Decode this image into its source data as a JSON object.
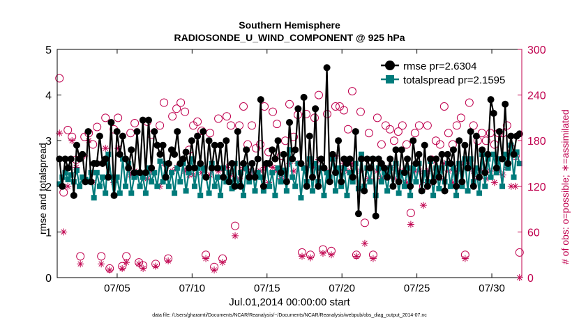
{
  "chart_data": {
    "type": "line",
    "title": [
      "Southern Hemisphere",
      "RADIOSONDE_U_WIND_COMPONENT @ 925 hPa"
    ],
    "xlabel": "Jul.01,2014 00:00:00 start",
    "ylabel": "rmse and totalspread",
    "ylabel_right": "# of obs: o=possible; ∗=assimilated",
    "footnote": "data file: /Users/gharamti/Documents/NCAR/Reanalysis/~/Documents/NCAR/Reanalysis/webpub/obs_diag_output_2014-07.nc",
    "xlim": [
      1,
      32
    ],
    "ylim": [
      0,
      5
    ],
    "ylim_right": [
      0,
      300
    ],
    "x_ticks": [
      5,
      10,
      15,
      20,
      25,
      30
    ],
    "x_tick_labels": [
      "07/05",
      "07/10",
      "07/15",
      "07/20",
      "07/25",
      "07/30"
    ],
    "y_ticks": [
      0,
      1,
      2,
      3,
      4,
      5
    ],
    "y_ticks_right": [
      0,
      60,
      120,
      180,
      240,
      300
    ],
    "legend_position": "top-right",
    "colors": {
      "rmse": "#000000",
      "totalspread": "#007B7B",
      "obs": "#C0004E"
    },
    "series": [
      {
        "name": "rmse pr=2.6304",
        "marker": "circle",
        "values": [
          2.6,
          2.0,
          2.6,
          2.4,
          2.6,
          1.8,
          2.9,
          2.6,
          2.7,
          2.1,
          3.2,
          2.1,
          2.5,
          2.5,
          3.1,
          2.5,
          2.6,
          2.2,
          3.4,
          1.8,
          3.2,
          2.7,
          3.1,
          2.6,
          2.4,
          2.8,
          2.3,
          3.2,
          2.3,
          3.45,
          2.3,
          3.45,
          2.4,
          3.2,
          2.9,
          2.7,
          2.9,
          2.2,
          2.5,
          2.8,
          2.7,
          3.2,
          2.5,
          2.6,
          2.75,
          2.4,
          3.0,
          2.4,
          3.1,
          2.5,
          3.2,
          2.2,
          3.0,
          2.4,
          2.9,
          2.4,
          2.9,
          2.2,
          3.0,
          2.1,
          2.5,
          2.0,
          3.2,
          2.0,
          2.5,
          2.8,
          2.2,
          2.5,
          2.2,
          2.6,
          3.9,
          2.0,
          2.5,
          2.5,
          2.8,
          2.6,
          3.0,
          2.3,
          2.7,
          2.1,
          3.4,
          2.6,
          2.8,
          3.7,
          2.5,
          3.95,
          2.0,
          3.1,
          2.2,
          3.7,
          2.0,
          2.6,
          2.4,
          4.6,
          2.1,
          2.7,
          2.3,
          3.0,
          2.1,
          2.6,
          2.5,
          2.6,
          2.2,
          3.2,
          1.4,
          2.6,
          1.9,
          2.6,
          2.4,
          2.6,
          1.35,
          2.6,
          2.5,
          2.4,
          2.2,
          2.6,
          2.0,
          2.8,
          2.1,
          2.8,
          2.3,
          2.6,
          2.0,
          3.0,
          2.5,
          2.7,
          1.9,
          2.9,
          2.0,
          2.6,
          2.1,
          2.6,
          2.2,
          2.7,
          1.9,
          2.7,
          2.5,
          2.8,
          2.0,
          3.0,
          2.1,
          2.9,
          2.4,
          3.2,
          2.0,
          3.1,
          2.2,
          2.8,
          2.3,
          2.7,
          3.9,
          3.6,
          2.4,
          3.2,
          2.6,
          3.8,
          2.5,
          3.1,
          2.7,
          3.1,
          3.15
        ]
      },
      {
        "name": "totalspread pr=2.1595",
        "marker": "square",
        "values": [
          2.05,
          2.2,
          2.3,
          2.15,
          2.25,
          2.1,
          2.35,
          2.0,
          2.2,
          2.15,
          2.1,
          2.3,
          1.75,
          2.3,
          2.0,
          2.2,
          1.85,
          2.7,
          2.2,
          1.8,
          2.2,
          1.85,
          2.6,
          2.0,
          2.5,
          1.85,
          2.2,
          2.3,
          2.0,
          2.2,
          1.85,
          2.4,
          2.1,
          2.3,
          2.0,
          2.55,
          2.1,
          2.5,
          2.0,
          2.3,
          1.85,
          2.4,
          2.1,
          2.5,
          1.9,
          2.3,
          2.6,
          2.0,
          2.4,
          1.8,
          2.4,
          2.2,
          1.85,
          2.5,
          2.0,
          2.2,
          1.8,
          2.4,
          2.1,
          2.3,
          1.95,
          2.5,
          2.0,
          2.3,
          1.8,
          2.4,
          2.1,
          2.5,
          1.9,
          2.3,
          2.2,
          1.9,
          2.5,
          2.0,
          2.3,
          1.8,
          2.4,
          2.1,
          2.35,
          1.9,
          2.8,
          2.2,
          2.0,
          2.5,
          1.75,
          2.4,
          2.1,
          2.6,
          1.9,
          2.5,
          2.1,
          2.4,
          1.8,
          2.3,
          2.2,
          2.6,
          1.9,
          2.4,
          2.0,
          2.4,
          1.8,
          2.3,
          2.1,
          2.5,
          1.95,
          2.7,
          2.0,
          2.4,
          2.1,
          2.6,
          1.8,
          2.4,
          2.1,
          2.3,
          1.9,
          2.4,
          2.0,
          2.5,
          1.85,
          2.3,
          2.0,
          2.4,
          1.8,
          2.4,
          2.1,
          2.5,
          1.9,
          2.3,
          2.1,
          2.55,
          1.8,
          2.4,
          1.95,
          2.4,
          2.1,
          2.5,
          2.0,
          2.4,
          1.8,
          2.5,
          2.0,
          2.6,
          1.9,
          2.6,
          2.1,
          2.4,
          1.85,
          2.7,
          2.0,
          2.6,
          2.2,
          2.7,
          2.3,
          2.6,
          2.0,
          2.7,
          2.4,
          2.9,
          2.2,
          2.75,
          2.5
        ]
      },
      {
        "name": "# of obs possible",
        "axis": "right",
        "marker": "open-circle",
        "values": [
          262,
          112,
          194,
          185,
          155,
          28,
          185,
          190,
          175,
          198,
          28,
          210,
          12,
          195,
          210,
          15,
          28,
          190,
          203,
          20,
          16,
          205,
          188,
          18,
          200,
          230,
          25,
          212,
          222,
          230,
          218,
          168,
          200,
          205,
          193,
          30,
          190,
          14,
          209,
          25,
          212,
          200,
          68,
          200,
          225,
          175,
          200,
          170,
          175,
          225,
          165,
          218,
          202,
          160,
          180,
          228,
          185,
          214,
          33,
          215,
          30,
          210,
          240,
          37,
          215,
          35,
          225,
          225,
          220,
          195,
          245,
          30,
          218,
          72,
          190,
          30,
          210,
          175,
          200,
          195,
          180,
          192,
          200,
          175,
          85,
          190,
          200,
          120,
          200,
          155,
          180,
          175,
          225,
          190,
          175,
          200,
          210,
          30,
          230,
          200,
          180,
          190,
          180,
          190,
          175,
          190,
          190,
          200,
          170,
          160,
          33
        ]
      },
      {
        "name": "# of obs assimilated",
        "axis": "right",
        "marker": "asterisk",
        "values": [
          190,
          60,
          120,
          180,
          145,
          18,
          160,
          180,
          125,
          150,
          18,
          170,
          10,
          125,
          170,
          12,
          20,
          135,
          140,
          18,
          12,
          130,
          140,
          15,
          120,
          150,
          22,
          140,
          145,
          150,
          140,
          135,
          135,
          145,
          138,
          25,
          135,
          10,
          140,
          20,
          145,
          135,
          55,
          130,
          145,
          140,
          140,
          135,
          140,
          145,
          125,
          145,
          140,
          130,
          130,
          150,
          140,
          150,
          28,
          145,
          26,
          145,
          155,
          32,
          140,
          30,
          160,
          140,
          150,
          140,
          150,
          28,
          140,
          45,
          130,
          25,
          140,
          130,
          140,
          145,
          130,
          140,
          140,
          125,
          70,
          140,
          140,
          95,
          140,
          125,
          130,
          130,
          150,
          140,
          125,
          140,
          150,
          25,
          150,
          140,
          130,
          140,
          130,
          140,
          125,
          140,
          135,
          145,
          120,
          120,
          0
        ]
      }
    ]
  }
}
